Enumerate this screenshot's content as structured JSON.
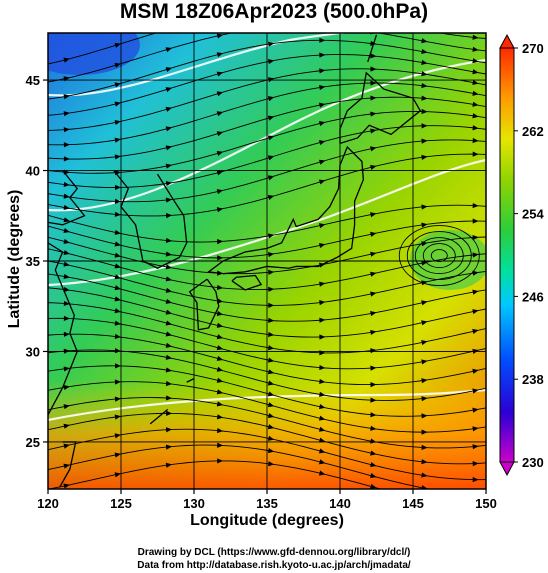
{
  "title": "MSM 18Z06Apr2023 (500.0hPa)",
  "x_axis": {
    "label": "Longitude (degrees)",
    "ticks": [
      "120",
      "125",
      "130",
      "135",
      "140",
      "145",
      "150"
    ],
    "range": [
      120,
      150
    ]
  },
  "y_axis": {
    "label": "Latitude  (degrees)",
    "ticks": [
      "25",
      "30",
      "35",
      "40",
      "45"
    ],
    "range": [
      22.4,
      47.6
    ]
  },
  "colorbar": {
    "ticks": [
      "270",
      "262",
      "254",
      "246",
      "238",
      "230"
    ],
    "range": [
      230,
      270
    ],
    "colors": [
      "#cc00cc",
      "#2a00d5",
      "#0050ff",
      "#00c8ff",
      "#00e0a0",
      "#2ccd3c",
      "#8ed400",
      "#e6e600",
      "#ff9a00",
      "#ff2a00"
    ]
  },
  "credits": {
    "line1": "Drawing by DCL (https://www.gfd-dennou.org/library/dcl/)",
    "line2": "Data from http://database.rish.kyoto-u.ac.jp/arch/jmadata/"
  }
}
